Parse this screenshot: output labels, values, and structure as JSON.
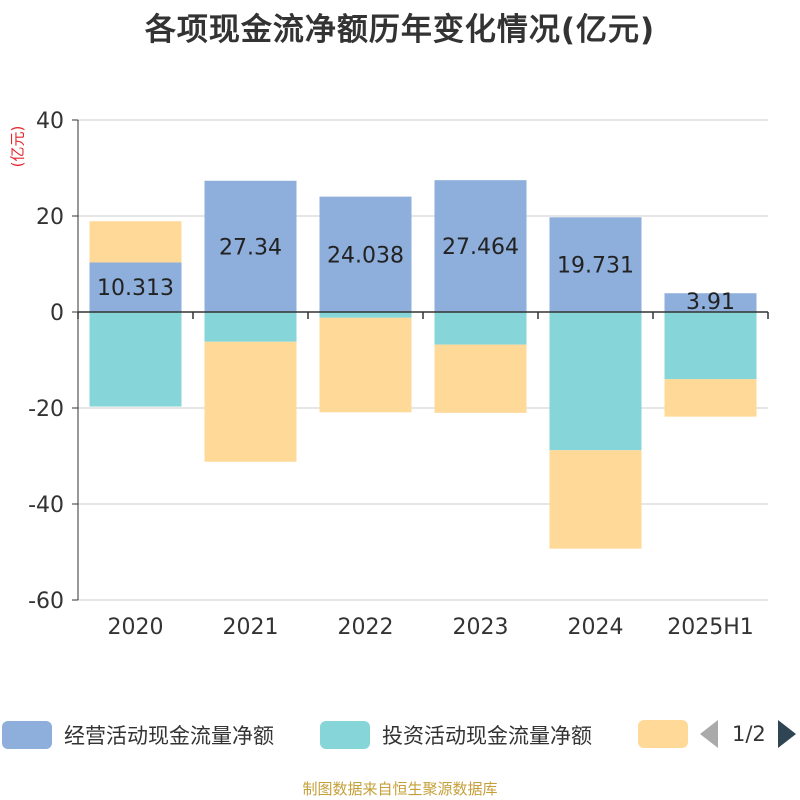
{
  "title": "各项现金流净额历年变化情况(亿元)",
  "unit_label": "(亿元)",
  "source": "制图数据来自恒生聚源数据库",
  "legend": {
    "items": [
      {
        "label": "经营活动现金流量净额",
        "color": "#8eaedb"
      },
      {
        "label": "投资活动现金流量净额",
        "color": "#86d5d8"
      },
      {
        "label": "",
        "color": "#ffd997"
      }
    ],
    "page": "1/2"
  },
  "chart_data": {
    "type": "bar",
    "stacked": true,
    "categories": [
      "2020",
      "2021",
      "2022",
      "2023",
      "2024",
      "2025H1"
    ],
    "series": [
      {
        "name": "经营活动现金流量净额",
        "color": "#8eaedb",
        "values": [
          10.313,
          27.34,
          24.038,
          27.464,
          19.731,
          3.91
        ],
        "labels": [
          "10.313",
          "27.34",
          "24.038",
          "27.464",
          "19.731",
          "3.91"
        ]
      },
      {
        "name": "投资活动现金流量净额",
        "color": "#86d5d8",
        "values": [
          -19.7,
          -6.2,
          -1.2,
          -6.8,
          -28.8,
          -14.0
        ]
      },
      {
        "color": "#ffd997",
        "values": [
          8.6,
          -25.0,
          -19.7,
          -14.2,
          -20.5,
          -7.8
        ]
      }
    ],
    "ylim": [
      -60,
      40
    ],
    "yticks": [
      -60,
      -40,
      -20,
      0,
      20,
      40
    ],
    "grid": true,
    "legend_position": "bottom"
  }
}
